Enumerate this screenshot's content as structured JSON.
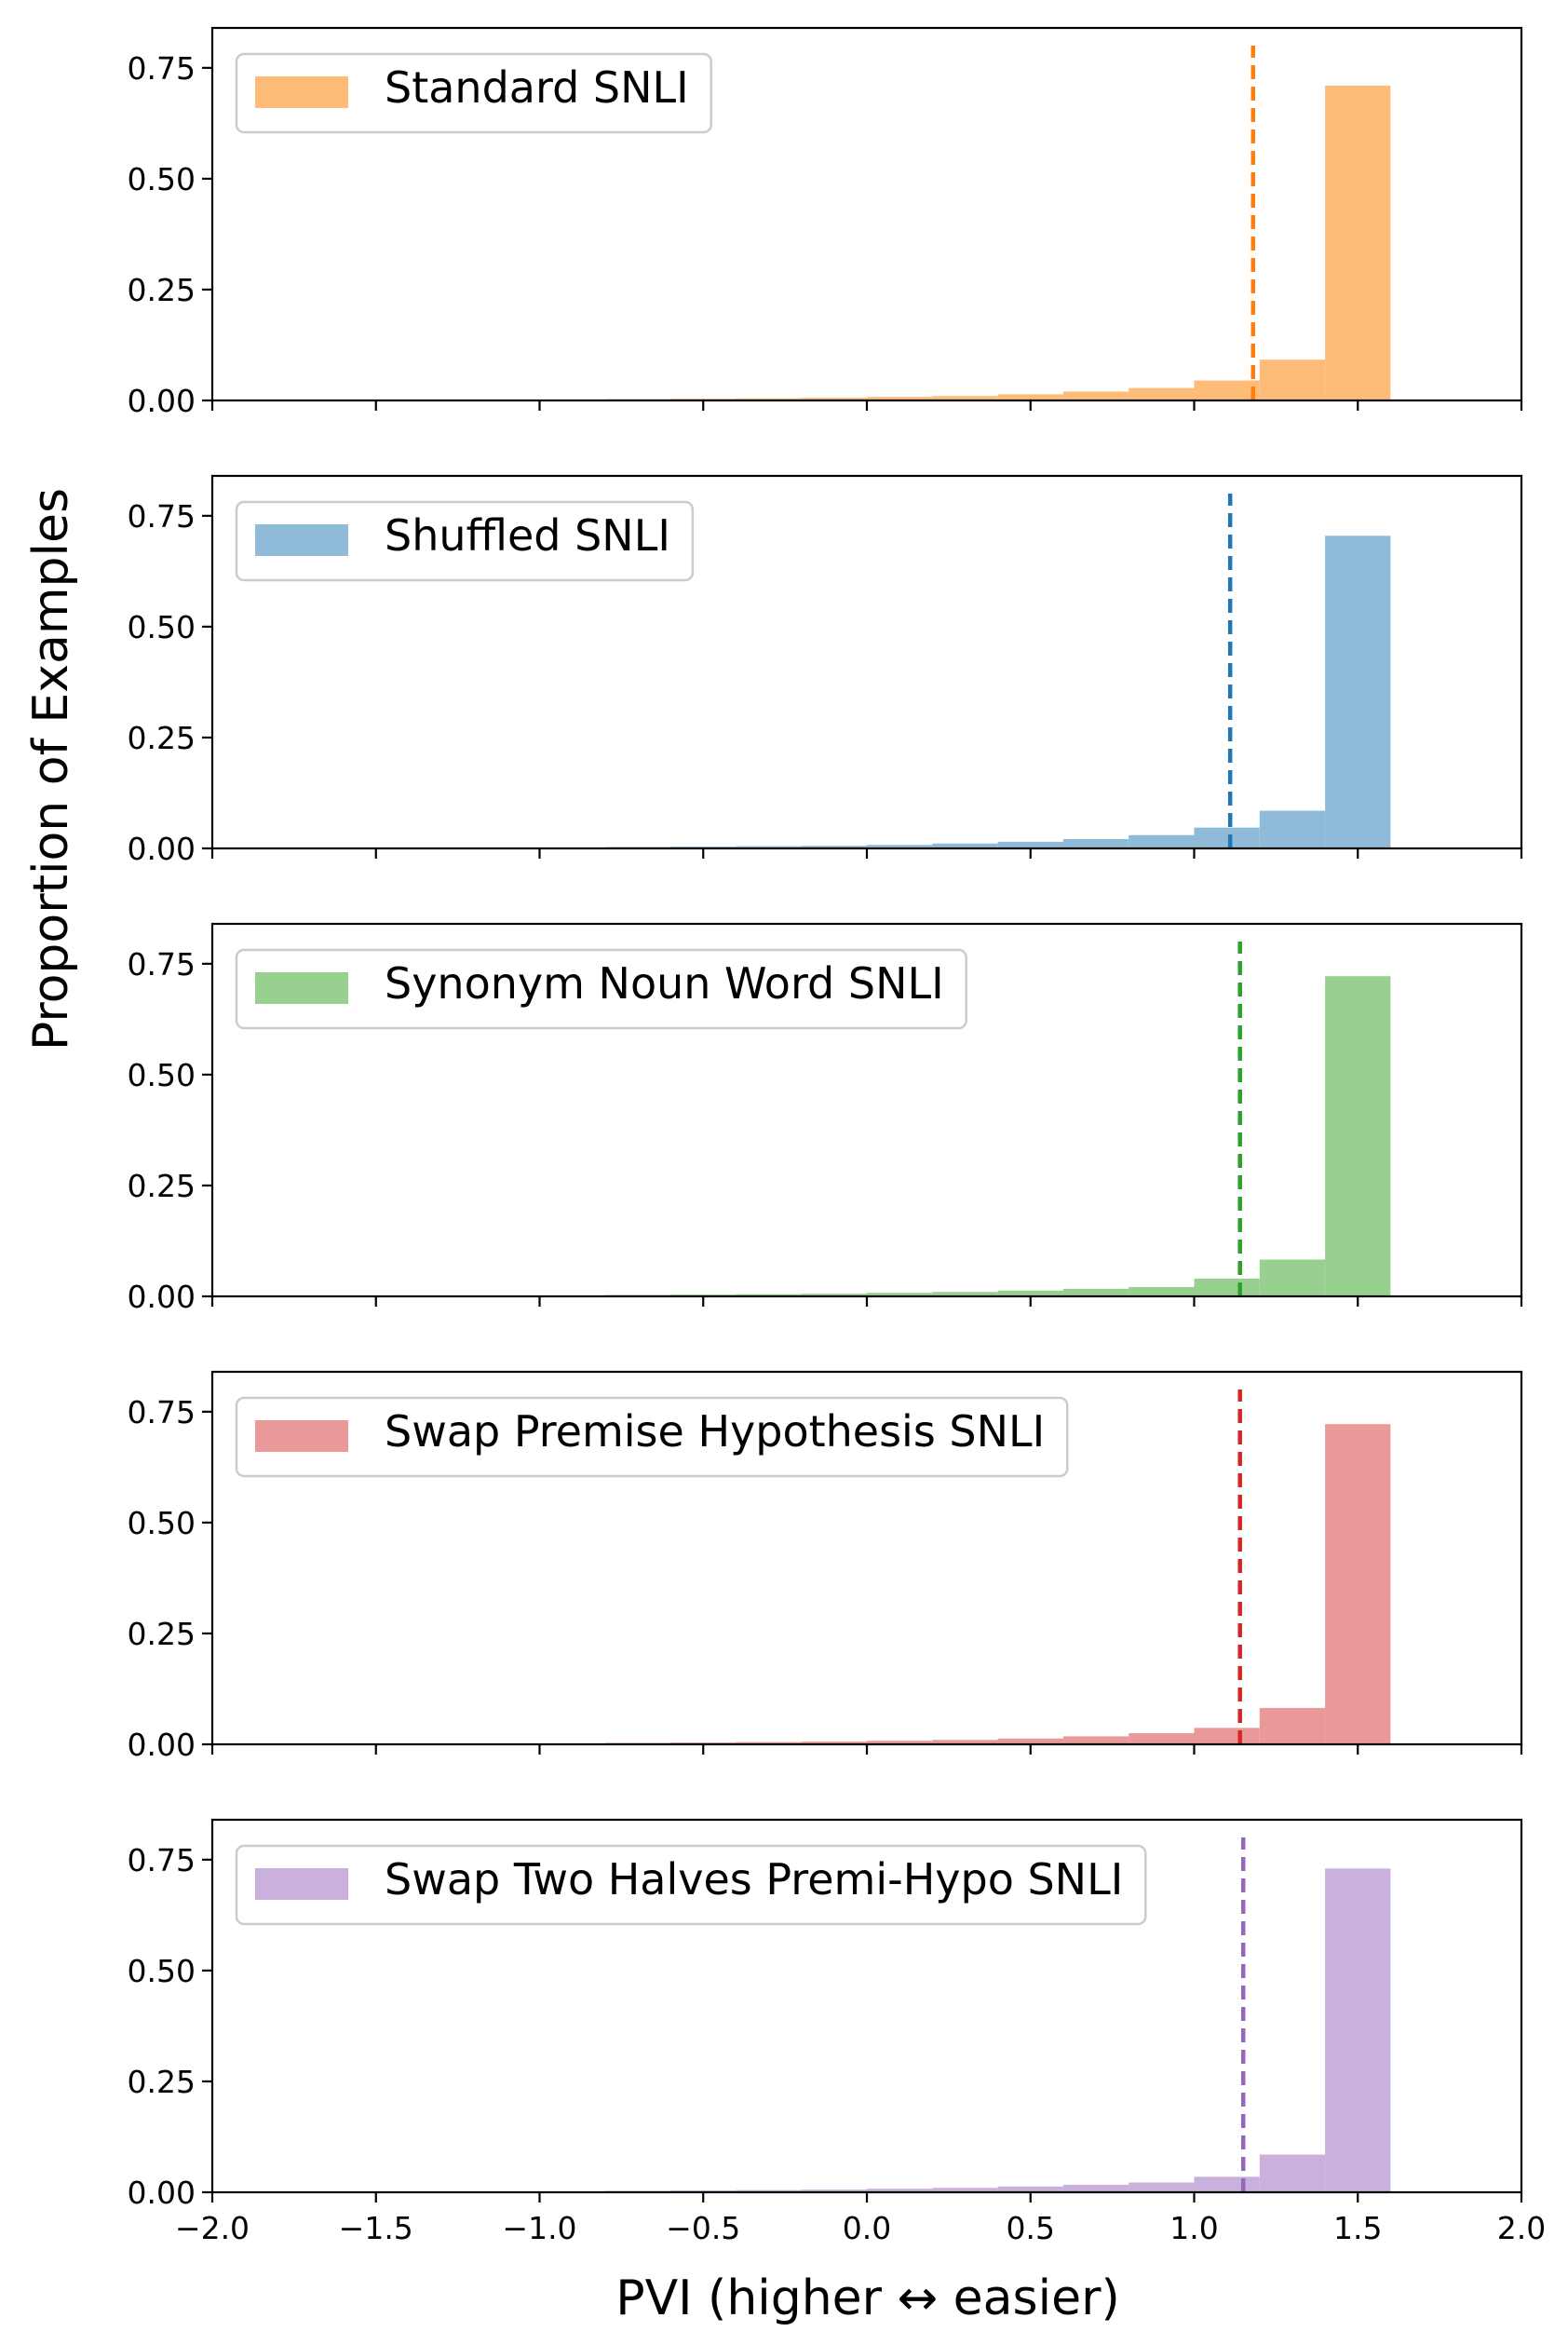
{
  "figure": {
    "ylabel": "Proportion of Examples",
    "xlabel": "PVI (higher ↔ easier)"
  },
  "chart_data": [
    {
      "type": "bar",
      "series": [
        {
          "name": "Standard SNLI",
          "color": "#ffbb78",
          "threshold_color": "#ff7f0e",
          "threshold": 1.18,
          "bins": [
            -1.6,
            -1.4,
            -1.2,
            -1.0,
            -0.8,
            -0.6,
            -0.4,
            -0.2,
            0.0,
            0.2,
            0.4,
            0.6,
            0.8,
            1.0,
            1.2,
            1.4,
            1.6
          ],
          "values": [
            0.001,
            0.001,
            0.002,
            0.002,
            0.003,
            0.004,
            0.005,
            0.006,
            0.008,
            0.01,
            0.014,
            0.02,
            0.028,
            0.045,
            0.092,
            0.71
          ]
        }
      ],
      "xlim": [
        -2.0,
        2.0
      ],
      "ylim": [
        0,
        0.84
      ],
      "yticks": [
        "0.00",
        "0.25",
        "0.50",
        "0.75"
      ],
      "ytick_values": [
        0,
        0.25,
        0.5,
        0.75
      ],
      "xticks": [],
      "xtick_values": [
        -2.0,
        -1.5,
        -1.0,
        -0.5,
        0.0,
        0.5,
        1.0,
        1.5,
        2.0
      ],
      "legend": "top-left"
    },
    {
      "type": "bar",
      "series": [
        {
          "name": "Shuffled SNLI",
          "color": "#8fbbd9",
          "threshold_color": "#1f77b4",
          "threshold": 1.11,
          "bins": [
            -1.6,
            -1.4,
            -1.2,
            -1.0,
            -0.8,
            -0.6,
            -0.4,
            -0.2,
            0.0,
            0.2,
            0.4,
            0.6,
            0.8,
            1.0,
            1.2,
            1.4,
            1.6
          ],
          "values": [
            0.001,
            0.001,
            0.002,
            0.002,
            0.003,
            0.004,
            0.005,
            0.006,
            0.008,
            0.011,
            0.015,
            0.021,
            0.03,
            0.047,
            0.085,
            0.705
          ]
        }
      ],
      "xlim": [
        -2.0,
        2.0
      ],
      "ylim": [
        0,
        0.84
      ],
      "yticks": [
        "0.00",
        "0.25",
        "0.50",
        "0.75"
      ],
      "ytick_values": [
        0,
        0.25,
        0.5,
        0.75
      ],
      "xticks": [],
      "xtick_values": [
        -2.0,
        -1.5,
        -1.0,
        -0.5,
        0.0,
        0.5,
        1.0,
        1.5,
        2.0
      ],
      "legend": "top-left"
    },
    {
      "type": "bar",
      "series": [
        {
          "name": "Synonym Noun Word SNLI",
          "color": "#98d18f",
          "threshold_color": "#2ca02c",
          "threshold": 1.14,
          "bins": [
            -1.6,
            -1.4,
            -1.2,
            -1.0,
            -0.8,
            -0.6,
            -0.4,
            -0.2,
            0.0,
            0.2,
            0.4,
            0.6,
            0.8,
            1.0,
            1.2,
            1.4,
            1.6
          ],
          "values": [
            0.001,
            0.001,
            0.002,
            0.002,
            0.003,
            0.004,
            0.005,
            0.006,
            0.008,
            0.01,
            0.013,
            0.017,
            0.021,
            0.04,
            0.083,
            0.722
          ]
        }
      ],
      "xlim": [
        -2.0,
        2.0
      ],
      "ylim": [
        0,
        0.84
      ],
      "yticks": [
        "0.00",
        "0.25",
        "0.50",
        "0.75"
      ],
      "ytick_values": [
        0,
        0.25,
        0.5,
        0.75
      ],
      "xticks": [],
      "xtick_values": [
        -2.0,
        -1.5,
        -1.0,
        -0.5,
        0.0,
        0.5,
        1.0,
        1.5,
        2.0
      ],
      "legend": "top-left"
    },
    {
      "type": "bar",
      "series": [
        {
          "name": "Swap Premise Hypothesis SNLI",
          "color": "#ea9999",
          "threshold_color": "#d62728",
          "threshold": 1.14,
          "bins": [
            -1.6,
            -1.4,
            -1.2,
            -1.0,
            -0.8,
            -0.6,
            -0.4,
            -0.2,
            0.0,
            0.2,
            0.4,
            0.6,
            0.8,
            1.0,
            1.2,
            1.4,
            1.6
          ],
          "values": [
            0.001,
            0.001,
            0.002,
            0.002,
            0.003,
            0.004,
            0.005,
            0.006,
            0.008,
            0.01,
            0.013,
            0.018,
            0.025,
            0.037,
            0.082,
            0.722
          ]
        }
      ],
      "xlim": [
        -2.0,
        2.0
      ],
      "ylim": [
        0,
        0.84
      ],
      "yticks": [
        "0.00",
        "0.25",
        "0.50",
        "0.75"
      ],
      "ytick_values": [
        0,
        0.25,
        0.5,
        0.75
      ],
      "xticks": [],
      "xtick_values": [
        -2.0,
        -1.5,
        -1.0,
        -0.5,
        0.0,
        0.5,
        1.0,
        1.5,
        2.0
      ],
      "legend": "top-left"
    },
    {
      "type": "bar",
      "series": [
        {
          "name": "Swap Two Halves Premi-Hypo SNLI",
          "color": "#c9b0dd",
          "threshold_color": "#9467bd",
          "threshold": 1.15,
          "bins": [
            -1.6,
            -1.4,
            -1.2,
            -1.0,
            -0.8,
            -0.6,
            -0.4,
            -0.2,
            0.0,
            0.2,
            0.4,
            0.6,
            0.8,
            1.0,
            1.2,
            1.4,
            1.6
          ],
          "values": [
            0.001,
            0.001,
            0.002,
            0.002,
            0.003,
            0.004,
            0.005,
            0.006,
            0.008,
            0.01,
            0.013,
            0.017,
            0.022,
            0.035,
            0.085,
            0.73
          ]
        }
      ],
      "xlim": [
        -2.0,
        2.0
      ],
      "ylim": [
        0,
        0.84
      ],
      "yticks": [
        "0.00",
        "0.25",
        "0.50",
        "0.75"
      ],
      "ytick_values": [
        0,
        0.25,
        0.5,
        0.75
      ],
      "xticks": [
        "−2.0",
        "−1.5",
        "−1.0",
        "−0.5",
        "0.0",
        "0.5",
        "1.0",
        "1.5",
        "2.0"
      ],
      "xtick_values": [
        -2.0,
        -1.5,
        -1.0,
        -0.5,
        0.0,
        0.5,
        1.0,
        1.5,
        2.0
      ],
      "legend": "top-left"
    }
  ]
}
